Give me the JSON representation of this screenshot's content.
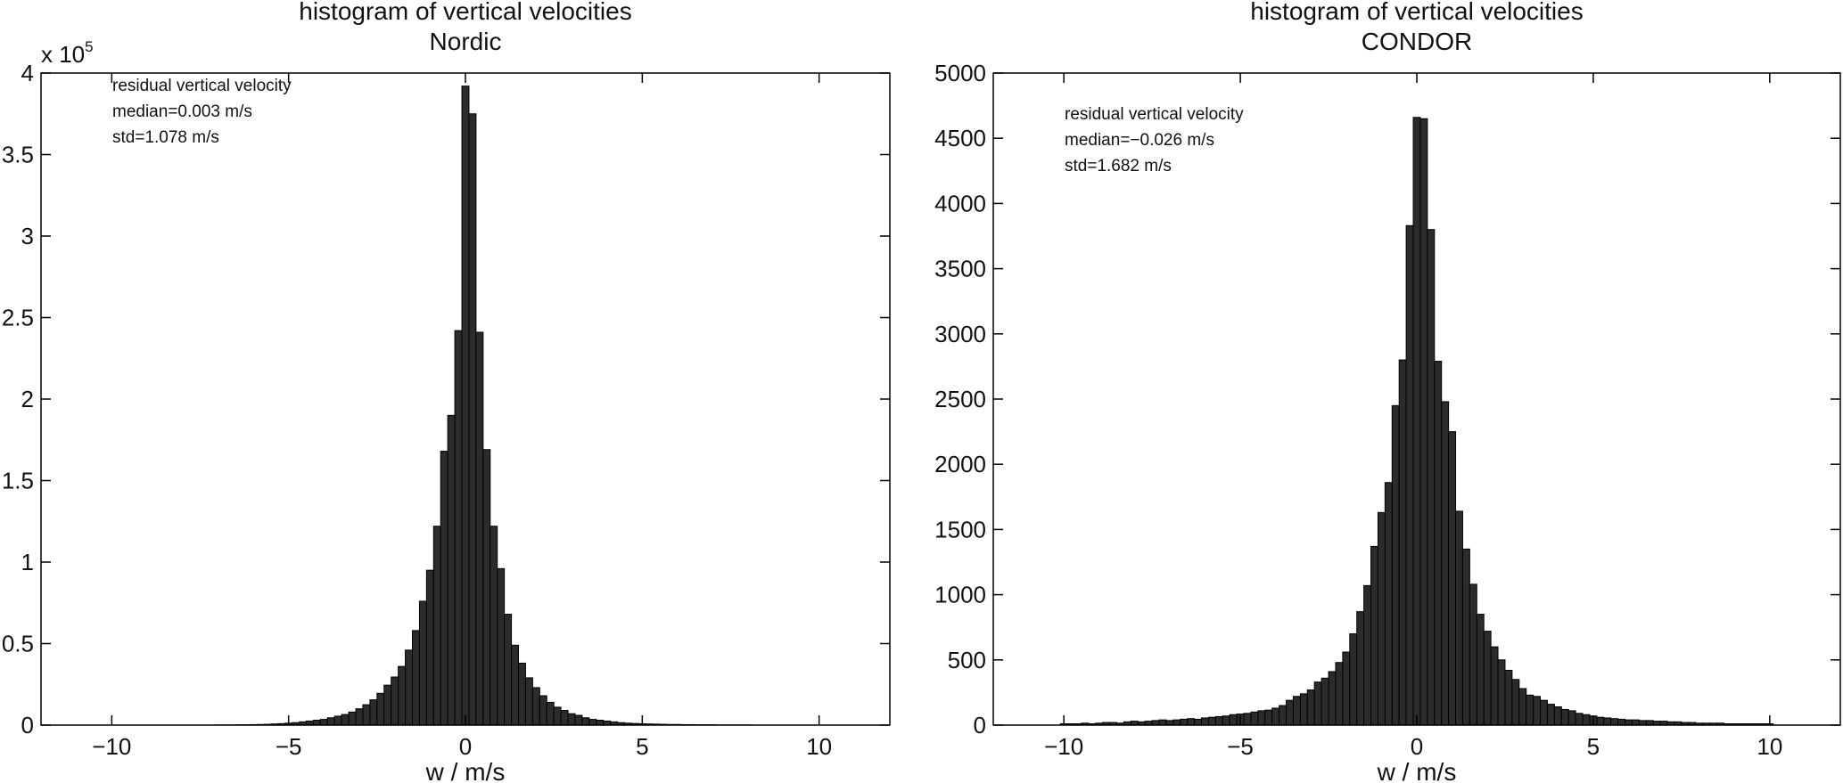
{
  "chart_data": [
    {
      "type": "bar",
      "title": "histogram of vertical velocities",
      "subtitle": "Nordic",
      "xlabel": "w / m/s",
      "ylabel": "",
      "xlim": [
        -12,
        12
      ],
      "ylim": [
        0,
        400000
      ],
      "xticks": [
        -10,
        -5,
        0,
        5,
        10
      ],
      "xtick_labels": [
        "−10",
        "−5",
        "0",
        "5",
        "10"
      ],
      "yticks": [
        0,
        50000,
        100000,
        150000,
        200000,
        250000,
        300000,
        350000,
        400000
      ],
      "ytick_labels": [
        "0",
        "0.5",
        "1",
        "1.5",
        "2",
        "2.5",
        "3",
        "3.5",
        "4"
      ],
      "y_multiplier": {
        "prefix": "x 10",
        "exponent": "5"
      },
      "annotations": [
        "residual vertical velocity",
        "median=0.003 m/s",
        "std=1.078 m/s"
      ],
      "grid": false,
      "bin_width": 0.2,
      "x": [
        -10.0,
        -9.8,
        -9.6,
        -9.4,
        -9.2,
        -9.0,
        -8.8,
        -8.6,
        -8.4,
        -8.2,
        -8.0,
        -7.8,
        -7.6,
        -7.4,
        -7.2,
        -7.0,
        -6.8,
        -6.6,
        -6.4,
        -6.2,
        -6.0,
        -5.8,
        -5.6,
        -5.4,
        -5.2,
        -5.0,
        -4.8,
        -4.6,
        -4.4,
        -4.2,
        -4.0,
        -3.8,
        -3.6,
        -3.4,
        -3.2,
        -3.0,
        -2.8,
        -2.6,
        -2.4,
        -2.2,
        -2.0,
        -1.8,
        -1.6,
        -1.4,
        -1.2,
        -1.0,
        -0.8,
        -0.6,
        -0.4,
        -0.2,
        0.0,
        0.2,
        0.4,
        0.6,
        0.8,
        1.0,
        1.2,
        1.4,
        1.6,
        1.8,
        2.0,
        2.2,
        2.4,
        2.6,
        2.8,
        3.0,
        3.2,
        3.4,
        3.6,
        3.8,
        4.0,
        4.2,
        4.4,
        4.6,
        4.8,
        5.0,
        5.2,
        5.4,
        5.6,
        5.8,
        6.0,
        6.2,
        6.4,
        6.6,
        6.8,
        7.0,
        7.2,
        7.4,
        7.6,
        7.8,
        8.0,
        8.2,
        8.4,
        8.6,
        8.8,
        9.0,
        9.2,
        9.4,
        9.6,
        9.8,
        10.0
      ],
      "values": [
        0,
        0,
        0,
        0,
        0,
        0,
        0,
        0,
        0,
        0,
        0,
        0,
        0,
        0,
        0,
        100,
        100,
        100,
        200,
        200,
        300,
        400,
        500,
        700,
        900,
        1200,
        1500,
        2000,
        2500,
        3000,
        3500,
        4500,
        5500,
        6500,
        8000,
        10000,
        12500,
        15500,
        19500,
        24500,
        29500,
        36000,
        46000,
        58000,
        76000,
        95000,
        122000,
        168000,
        190000,
        242000,
        392000,
        375000,
        241000,
        169000,
        122000,
        96000,
        68000,
        49000,
        38000,
        29000,
        23000,
        18000,
        14000,
        11000,
        9000,
        7000,
        6000,
        4500,
        3500,
        3000,
        2500,
        2000,
        1500,
        1200,
        1000,
        800,
        700,
        600,
        500,
        400,
        400,
        300,
        300,
        200,
        200,
        200,
        100,
        100,
        100,
        100,
        100,
        0,
        0,
        0,
        0,
        0,
        0,
        0,
        0,
        0,
        0
      ]
    },
    {
      "type": "bar",
      "title": "histogram of vertical velocities",
      "subtitle": "CONDOR",
      "xlabel": "w / m/s",
      "ylabel": "",
      "xlim": [
        -12,
        12
      ],
      "ylim": [
        0,
        5000
      ],
      "xticks": [
        -10,
        -5,
        0,
        5,
        10
      ],
      "xtick_labels": [
        "−10",
        "−5",
        "0",
        "5",
        "10"
      ],
      "yticks": [
        0,
        500,
        1000,
        1500,
        2000,
        2500,
        3000,
        3500,
        4000,
        4500,
        5000
      ],
      "ytick_labels": [
        "0",
        "500",
        "1000",
        "1500",
        "2000",
        "2500",
        "3000",
        "3500",
        "4000",
        "4500",
        "5000"
      ],
      "annotations": [
        "residual vertical velocity",
        "median=−0.026 m/s",
        "std=1.682 m/s"
      ],
      "grid": false,
      "bin_width": 0.2,
      "x": [
        -10.0,
        -9.8,
        -9.6,
        -9.4,
        -9.2,
        -9.0,
        -8.8,
        -8.6,
        -8.4,
        -8.2,
        -8.0,
        -7.8,
        -7.6,
        -7.4,
        -7.2,
        -7.0,
        -6.8,
        -6.6,
        -6.4,
        -6.2,
        -6.0,
        -5.8,
        -5.6,
        -5.4,
        -5.2,
        -5.0,
        -4.8,
        -4.6,
        -4.4,
        -4.2,
        -4.0,
        -3.8,
        -3.6,
        -3.4,
        -3.2,
        -3.0,
        -2.8,
        -2.6,
        -2.4,
        -2.2,
        -2.0,
        -1.8,
        -1.6,
        -1.4,
        -1.2,
        -1.0,
        -0.8,
        -0.6,
        -0.4,
        -0.2,
        0.0,
        0.2,
        0.4,
        0.6,
        0.8,
        1.0,
        1.2,
        1.4,
        1.6,
        1.8,
        2.0,
        2.2,
        2.4,
        2.6,
        2.8,
        3.0,
        3.2,
        3.4,
        3.6,
        3.8,
        4.0,
        4.2,
        4.4,
        4.6,
        4.8,
        5.0,
        5.2,
        5.4,
        5.6,
        5.8,
        6.0,
        6.2,
        6.4,
        6.6,
        6.8,
        7.0,
        7.2,
        7.4,
        7.6,
        7.8,
        8.0,
        8.2,
        8.4,
        8.6,
        8.8,
        9.0,
        9.2,
        9.4,
        9.6,
        9.8,
        10.0
      ],
      "values": [
        10,
        10,
        10,
        15,
        10,
        15,
        20,
        20,
        15,
        25,
        30,
        25,
        30,
        35,
        40,
        35,
        40,
        45,
        50,
        45,
        55,
        60,
        65,
        70,
        80,
        85,
        90,
        100,
        110,
        115,
        130,
        150,
        190,
        220,
        240,
        270,
        330,
        360,
        410,
        480,
        560,
        700,
        870,
        1070,
        1370,
        1630,
        1860,
        2450,
        2800,
        3830,
        4660,
        4650,
        3800,
        2790,
        2480,
        2250,
        1640,
        1350,
        1080,
        850,
        720,
        600,
        500,
        420,
        350,
        280,
        230,
        220,
        190,
        160,
        140,
        120,
        110,
        90,
        80,
        70,
        60,
        55,
        50,
        45,
        40,
        40,
        35,
        35,
        30,
        30,
        25,
        25,
        20,
        20,
        15,
        15,
        15,
        15,
        10,
        10,
        10,
        10,
        10,
        10,
        10
      ]
    }
  ]
}
